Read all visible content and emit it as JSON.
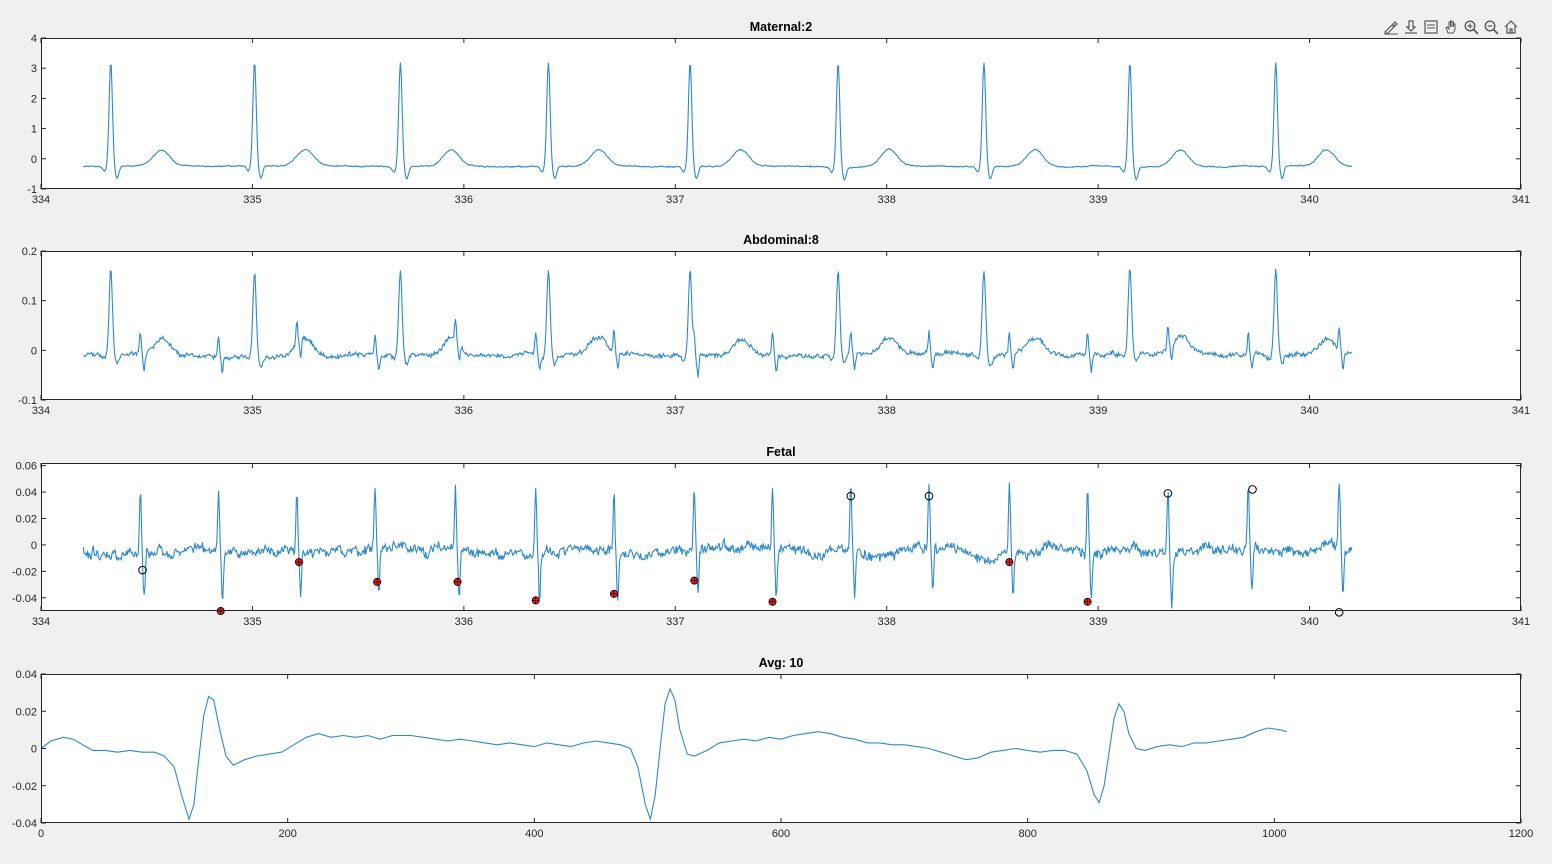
{
  "toolbar": {
    "icons": [
      "brush-icon",
      "datatip-icon",
      "data-cursor-icon",
      "pan-hand-icon",
      "zoom-in-icon",
      "zoom-out-icon",
      "home-icon"
    ]
  },
  "colors": {
    "line": "#2f89c9",
    "marker_red": "#ff1a1a",
    "marker_black": "#000000",
    "axes_bg": "#ffffff",
    "figure_bg": "#f0f0f0"
  },
  "chart_data": [
    {
      "type": "line",
      "title": "Maternal:2",
      "xlabel": "",
      "ylabel": "",
      "xlim": [
        334,
        341
      ],
      "ylim": [
        -1,
        4
      ],
      "xticks": [
        334,
        335,
        336,
        337,
        338,
        339,
        340,
        341
      ],
      "yticks": [
        -1,
        0,
        1,
        2,
        3,
        4
      ],
      "signal": {
        "x_start": 334.2,
        "x_end": 340.2,
        "r_peaks": [
          334.33,
          335.01,
          335.7,
          336.4,
          337.07,
          337.77,
          338.46,
          339.15,
          339.84
        ],
        "r_height": 3.45,
        "t_height": 0.55,
        "baseline": -0.25,
        "fetal_peaks": [],
        "fetal_height": 0,
        "noise": 0.03
      },
      "markers": []
    },
    {
      "type": "line",
      "title": "Abdominal:8",
      "xlabel": "",
      "ylabel": "",
      "xlim": [
        334,
        341
      ],
      "ylim": [
        -0.1,
        0.2
      ],
      "xticks": [
        334,
        335,
        336,
        337,
        338,
        339,
        340,
        341
      ],
      "yticks": [
        -0.1,
        0,
        0.1,
        0.2
      ],
      "signal": {
        "x_start": 334.2,
        "x_end": 340.2,
        "r_peaks": [
          334.33,
          335.01,
          335.7,
          336.4,
          337.07,
          337.77,
          338.46,
          339.15,
          339.84
        ],
        "r_height": 0.17,
        "t_height": 0.035,
        "baseline": -0.01,
        "fetal_peaks": [
          334.47,
          334.84,
          335.21,
          335.58,
          335.96,
          336.34,
          336.71,
          337.09,
          337.46,
          337.83,
          338.2,
          338.58,
          338.95,
          339.33,
          339.71,
          340.14
        ],
        "fetal_height": 0.045,
        "noise": 0.007
      },
      "markers": []
    },
    {
      "type": "line",
      "title": "Fetal",
      "xlabel": "",
      "ylabel": "",
      "xlim": [
        334,
        341
      ],
      "ylim": [
        -0.05,
        0.062
      ],
      "xticks": [
        334,
        335,
        336,
        337,
        338,
        339,
        340,
        341
      ],
      "yticks": [
        -0.04,
        -0.02,
        0,
        0.02,
        0.04,
        0.06
      ],
      "signal": {
        "x_start": 334.2,
        "x_end": 340.2,
        "r_peaks": [],
        "r_height": 0,
        "t_height": 0,
        "baseline": -0.005,
        "fetal_peaks": [
          334.47,
          334.84,
          335.21,
          335.58,
          335.96,
          336.34,
          336.71,
          337.09,
          337.46,
          337.83,
          338.2,
          338.58,
          338.95,
          339.33,
          339.71,
          340.14
        ],
        "fetal_height": 0.05,
        "noise": 0.006
      },
      "markers": [
        {
          "x": 334.48,
          "y": -0.019,
          "style": "black"
        },
        {
          "x": 334.85,
          "y": -0.05,
          "style": "red"
        },
        {
          "x": 335.22,
          "y": -0.013,
          "style": "red"
        },
        {
          "x": 335.59,
          "y": -0.028,
          "style": "red"
        },
        {
          "x": 335.97,
          "y": -0.028,
          "style": "red"
        },
        {
          "x": 336.34,
          "y": -0.042,
          "style": "red"
        },
        {
          "x": 336.71,
          "y": -0.037,
          "style": "red"
        },
        {
          "x": 337.09,
          "y": -0.027,
          "style": "red"
        },
        {
          "x": 337.46,
          "y": -0.043,
          "style": "red"
        },
        {
          "x": 337.83,
          "y": 0.037,
          "style": "black"
        },
        {
          "x": 338.2,
          "y": 0.037,
          "style": "black"
        },
        {
          "x": 338.58,
          "y": -0.013,
          "style": "red"
        },
        {
          "x": 338.95,
          "y": -0.043,
          "style": "red"
        },
        {
          "x": 339.33,
          "y": 0.039,
          "style": "black"
        },
        {
          "x": 339.73,
          "y": 0.042,
          "style": "black"
        },
        {
          "x": 340.14,
          "y": -0.051,
          "style": "black"
        }
      ]
    },
    {
      "type": "line",
      "title": "Avg: 10",
      "xlabel": "",
      "ylabel": "",
      "xlim": [
        0,
        1200
      ],
      "ylim": [
        -0.04,
        0.04
      ],
      "xticks": [
        0,
        200,
        400,
        600,
        800,
        1000,
        1200
      ],
      "yticks": [
        -0.04,
        -0.02,
        0,
        0.02,
        0.04
      ],
      "points": [
        [
          0,
          0
        ],
        [
          8,
          0.004
        ],
        [
          18,
          0.006
        ],
        [
          26,
          0.005
        ],
        [
          34,
          0.002
        ],
        [
          42,
          -0.001
        ],
        [
          52,
          -0.001
        ],
        [
          62,
          -0.002
        ],
        [
          72,
          -0.001
        ],
        [
          82,
          -0.002
        ],
        [
          92,
          -0.002
        ],
        [
          100,
          -0.004
        ],
        [
          108,
          -0.01
        ],
        [
          114,
          -0.025
        ],
        [
          120,
          -0.038
        ],
        [
          124,
          -0.03
        ],
        [
          128,
          -0.005
        ],
        [
          132,
          0.018
        ],
        [
          136,
          0.028
        ],
        [
          140,
          0.026
        ],
        [
          145,
          0.01
        ],
        [
          150,
          -0.004
        ],
        [
          156,
          -0.009
        ],
        [
          165,
          -0.006
        ],
        [
          175,
          -0.004
        ],
        [
          185,
          -0.003
        ],
        [
          195,
          -0.002
        ],
        [
          205,
          0.002
        ],
        [
          215,
          0.006
        ],
        [
          225,
          0.008
        ],
        [
          235,
          0.006
        ],
        [
          245,
          0.007
        ],
        [
          255,
          0.006
        ],
        [
          265,
          0.007
        ],
        [
          275,
          0.005
        ],
        [
          285,
          0.007
        ],
        [
          300,
          0.007
        ],
        [
          310,
          0.006
        ],
        [
          320,
          0.005
        ],
        [
          330,
          0.004
        ],
        [
          340,
          0.005
        ],
        [
          350,
          0.004
        ],
        [
          360,
          0.003
        ],
        [
          370,
          0.002
        ],
        [
          380,
          0.003
        ],
        [
          390,
          0.002
        ],
        [
          400,
          0.001
        ],
        [
          410,
          0.003
        ],
        [
          420,
          0.002
        ],
        [
          430,
          0.001
        ],
        [
          440,
          0.003
        ],
        [
          450,
          0.004
        ],
        [
          460,
          0.003
        ],
        [
          470,
          0.002
        ],
        [
          478,
          0.0
        ],
        [
          484,
          -0.01
        ],
        [
          490,
          -0.03
        ],
        [
          494,
          -0.038
        ],
        [
          498,
          -0.025
        ],
        [
          502,
          0.0
        ],
        [
          506,
          0.024
        ],
        [
          510,
          0.032
        ],
        [
          514,
          0.026
        ],
        [
          518,
          0.01
        ],
        [
          524,
          -0.003
        ],
        [
          530,
          -0.004
        ],
        [
          540,
          -0.001
        ],
        [
          550,
          0.003
        ],
        [
          560,
          0.004
        ],
        [
          570,
          0.005
        ],
        [
          580,
          0.004
        ],
        [
          590,
          0.006
        ],
        [
          600,
          0.005
        ],
        [
          610,
          0.007
        ],
        [
          620,
          0.008
        ],
        [
          630,
          0.009
        ],
        [
          640,
          0.008
        ],
        [
          650,
          0.006
        ],
        [
          660,
          0.005
        ],
        [
          670,
          0.003
        ],
        [
          680,
          0.003
        ],
        [
          690,
          0.002
        ],
        [
          700,
          0.002
        ],
        [
          710,
          0.001
        ],
        [
          720,
          0.0
        ],
        [
          730,
          -0.002
        ],
        [
          740,
          -0.004
        ],
        [
          750,
          -0.006
        ],
        [
          760,
          -0.005
        ],
        [
          770,
          -0.002
        ],
        [
          780,
          -0.001
        ],
        [
          790,
          0.0
        ],
        [
          800,
          -0.001
        ],
        [
          810,
          -0.002
        ],
        [
          820,
          -0.001
        ],
        [
          830,
          -0.001
        ],
        [
          840,
          -0.003
        ],
        [
          848,
          -0.012
        ],
        [
          854,
          -0.025
        ],
        [
          858,
          -0.029
        ],
        [
          862,
          -0.02
        ],
        [
          866,
          -0.002
        ],
        [
          870,
          0.016
        ],
        [
          874,
          0.024
        ],
        [
          878,
          0.02
        ],
        [
          882,
          0.008
        ],
        [
          888,
          0.0
        ],
        [
          895,
          -0.001
        ],
        [
          905,
          0.001
        ],
        [
          915,
          0.002
        ],
        [
          925,
          0.001
        ],
        [
          935,
          0.003
        ],
        [
          945,
          0.003
        ],
        [
          955,
          0.004
        ],
        [
          965,
          0.005
        ],
        [
          975,
          0.006
        ],
        [
          985,
          0.009
        ],
        [
          995,
          0.011
        ],
        [
          1005,
          0.01
        ],
        [
          1010,
          0.009
        ]
      ],
      "markers": []
    }
  ]
}
